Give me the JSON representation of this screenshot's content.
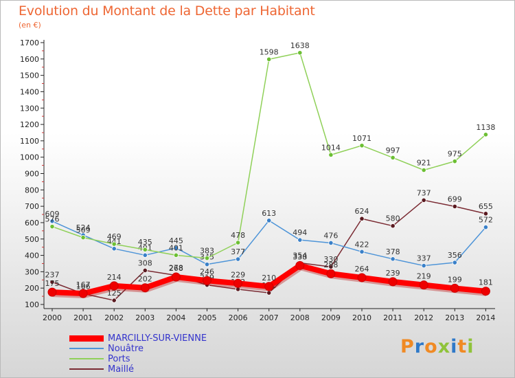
{
  "header": {
    "title": "Evolution du Montant de la Dette par Habitant",
    "unit": "(en €)"
  },
  "logo": {
    "text": "Proxiti",
    "colors": [
      "#f08a24",
      "#2f79c8",
      "#f08a24",
      "#8fc33a",
      "#2f79c8",
      "#f08a24",
      "#8fc33a"
    ]
  },
  "chart_data": {
    "type": "line",
    "title": "Evolution du Montant de la Dette par Habitant",
    "ylabel": "(en €)",
    "xlabel": "",
    "ylim": [
      100,
      1700
    ],
    "yticks": [
      100,
      200,
      300,
      400,
      500,
      600,
      700,
      800,
      900,
      1000,
      1100,
      1200,
      1300,
      1400,
      1500,
      1600,
      1700
    ],
    "grid": false,
    "legend_position": "bottom-left",
    "categories": [
      "2000",
      "2001",
      "2002",
      "2003",
      "2004",
      "2005",
      "2006",
      "2007",
      "2008",
      "2009",
      "2010",
      "2011",
      "2012",
      "2013",
      "2014"
    ],
    "series": [
      {
        "name": "Maillé",
        "color": "#7a2a32",
        "marker": "#5a1a20",
        "values": [
          237,
          166,
          125,
          308,
          278,
          219,
          193,
          171,
          354,
          330,
          624,
          580,
          737,
          699,
          655
        ]
      },
      {
        "name": "Nouâtre",
        "color": "#4d94d8",
        "marker": "#3a80c8",
        "values": [
          609,
          524,
          441,
          401,
          445,
          345,
          377,
          613,
          494,
          476,
          422,
          378,
          337,
          356,
          572
        ]
      },
      {
        "name": "Ports",
        "color": "#8fd058",
        "marker": "#6cbf33",
        "values": [
          576,
          509,
          469,
          435,
          401,
          383,
          478,
          1598,
          1638,
          1014,
          1071,
          997,
          921,
          975,
          1138
        ]
      },
      {
        "name": "MARCILLY-SUR-VIENNE",
        "color": "#ff0000",
        "marker": "#ee0000",
        "values": [
          175,
          167,
          214,
          202,
          268,
          246,
          229,
          210,
          338,
          288,
          264,
          239,
          219,
          199,
          181
        ]
      }
    ],
    "legend_order": [
      "MARCILLY-SUR-VIENNE",
      "Nouâtre",
      "Ports",
      "Maillé"
    ]
  }
}
